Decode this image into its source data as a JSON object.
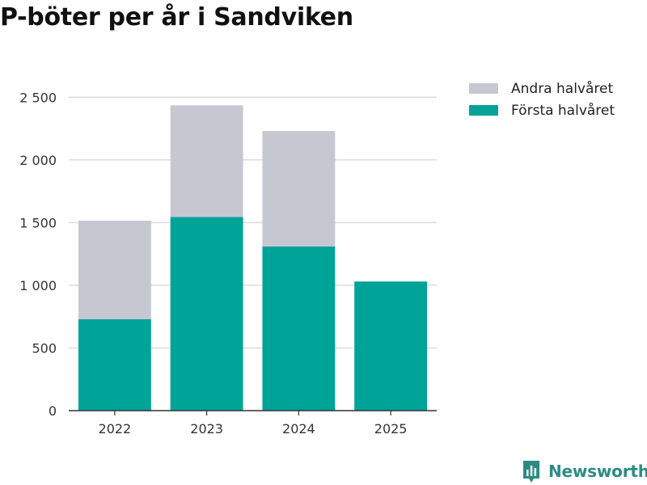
{
  "title": "P-böter per år i Sandviken",
  "brand": {
    "name": "Newsworthy",
    "icon": "newsworthy-logo-icon",
    "color": "#2a8c85"
  },
  "chart_data": {
    "type": "bar",
    "stacked": true,
    "title": "P-böter per år i Sandviken",
    "xlabel": "",
    "ylabel": "",
    "categories": [
      "2022",
      "2023",
      "2024",
      "2025"
    ],
    "series": [
      {
        "name": "Första halvåret",
        "color": "#00a398",
        "values": [
          730,
          1545,
          1310,
          1030
        ]
      },
      {
        "name": "Andra halvåret",
        "color": "#c7c7d1",
        "values": [
          785,
          890,
          920,
          0
        ]
      }
    ],
    "ylim": [
      0,
      2650
    ],
    "yticks": [
      0,
      500,
      1000,
      1500,
      2000,
      2500
    ],
    "ytick_labels": [
      "0",
      "500",
      "1 000",
      "1 500",
      "2 000",
      "2 500"
    ],
    "grid": true,
    "legend": {
      "position": "top-right",
      "entries": [
        {
          "label": "Andra halvåret",
          "color": "#c7c7d1"
        },
        {
          "label": "Första halvåret",
          "color": "#00a398"
        }
      ]
    }
  }
}
